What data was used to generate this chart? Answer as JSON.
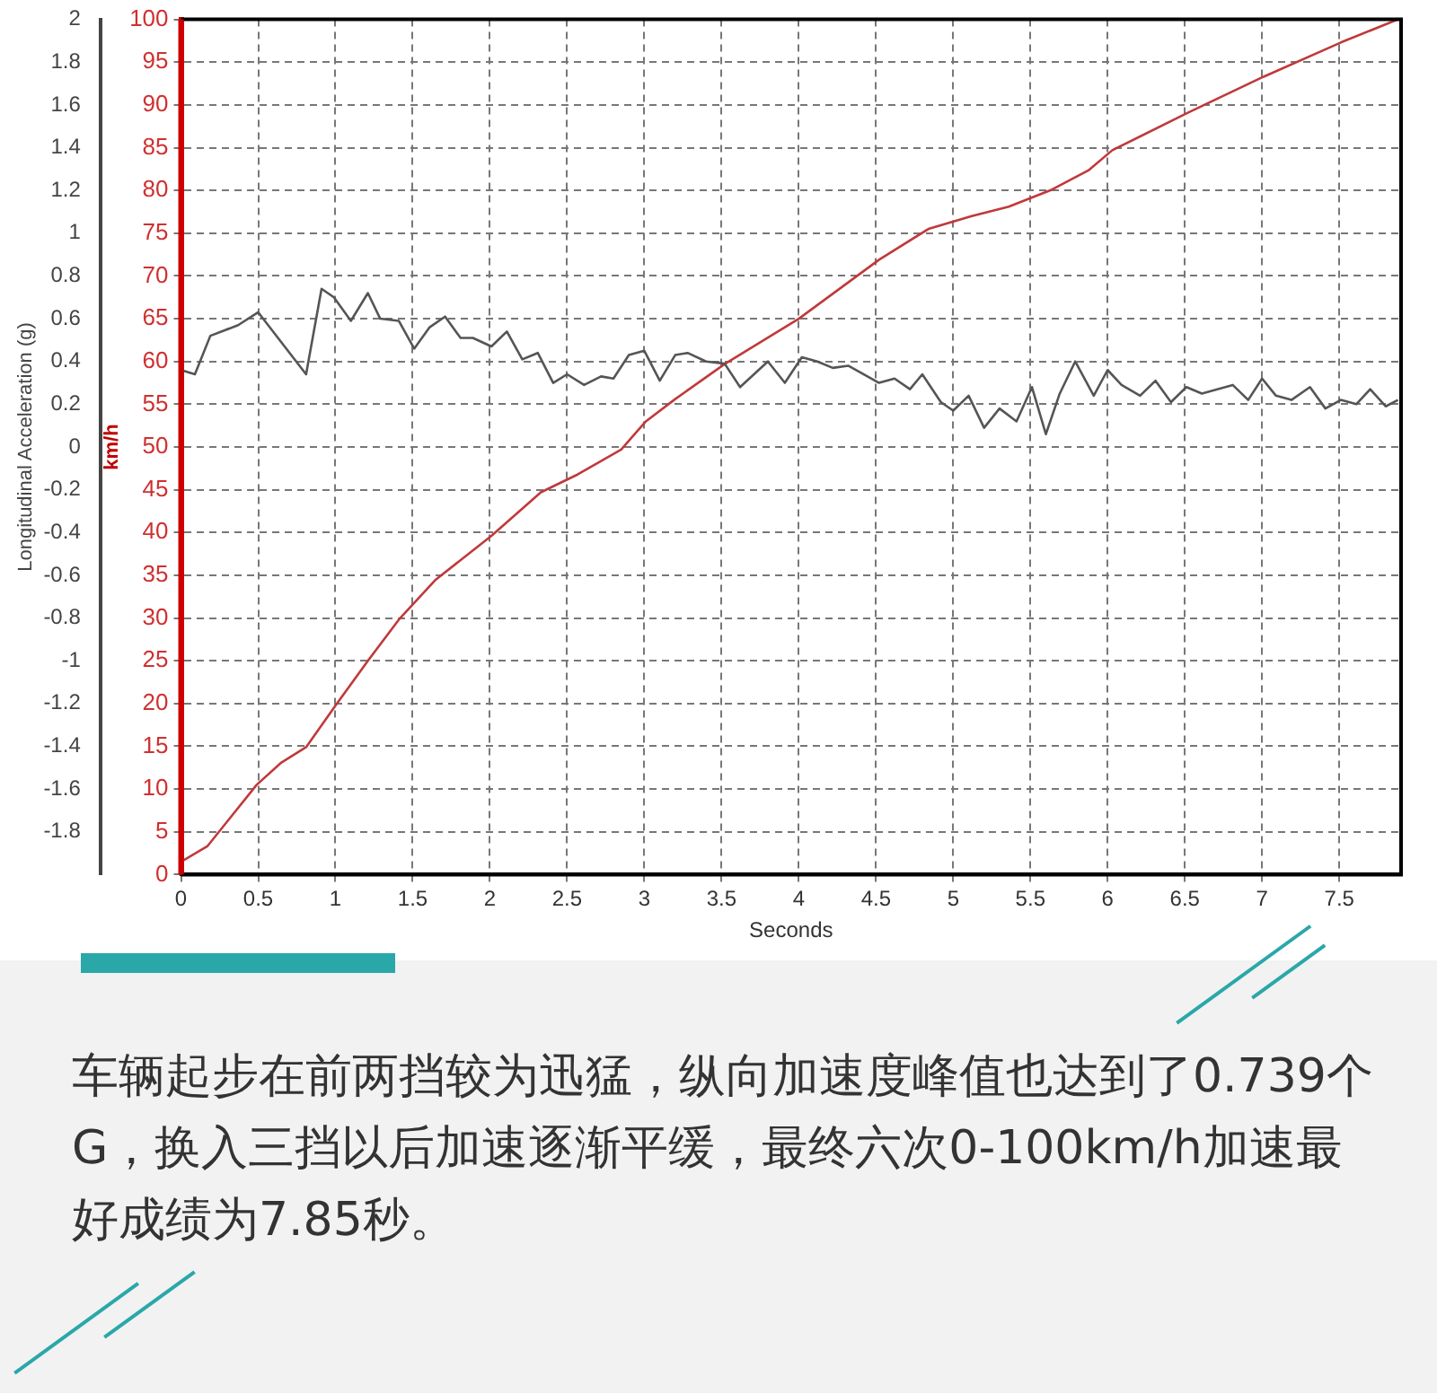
{
  "chart_data": {
    "type": "line",
    "xlabel": "Seconds",
    "ylabel": "Longitudinal Acceleration (g)",
    "y2label": "km/h",
    "xlim": [
      0,
      7.9
    ],
    "xticks": [
      0,
      0.5,
      1,
      1.5,
      2,
      2.5,
      3,
      3.5,
      4,
      4.5,
      5,
      5.5,
      6,
      6.5,
      7,
      7.5
    ],
    "ylim": [
      -2,
      2
    ],
    "yticks": [
      -1.8,
      -1.6,
      -1.4,
      -1.2,
      -1,
      -0.8,
      -0.6,
      -0.4,
      -0.2,
      0,
      0.2,
      0.4,
      0.6,
      0.8,
      1,
      1.2,
      1.4,
      1.6,
      1.8,
      2
    ],
    "y2lim": [
      0,
      100
    ],
    "y2ticks": [
      0,
      5,
      10,
      15,
      20,
      25,
      30,
      35,
      40,
      45,
      50,
      55,
      60,
      65,
      70,
      75,
      80,
      85,
      90,
      95,
      100
    ],
    "grid": true,
    "series": [
      {
        "color": "#555555",
        "x": [
          0,
          0.09,
          0.19,
          0.37,
          0.5,
          0.81,
          0.91,
          0.99,
          1.1,
          1.21,
          1.29,
          1.41,
          1.51,
          1.61,
          1.71,
          1.81,
          1.89,
          2.01,
          2.11,
          2.21,
          2.31,
          2.41,
          2.5,
          2.61,
          2.72,
          2.8,
          2.9,
          3.0,
          3.1,
          3.2,
          3.28,
          3.4,
          3.52,
          3.62,
          3.8,
          3.91,
          4.02,
          4.12,
          4.22,
          4.32,
          4.52,
          4.62,
          4.72,
          4.8,
          4.92,
          5.0,
          5.1,
          5.2,
          5.3,
          5.41,
          5.51,
          5.6,
          5.69,
          5.79,
          5.91,
          6.0,
          6.09,
          6.21,
          6.31,
          6.41,
          6.51,
          6.61,
          6.71,
          6.81,
          6.91,
          7.0,
          7.09,
          7.19,
          7.31,
          7.41,
          7.51,
          7.61,
          7.7,
          7.8,
          7.88
        ],
        "values": [
          0.36,
          0.34,
          0.52,
          0.57,
          0.63,
          0.34,
          0.74,
          0.7,
          0.59,
          0.72,
          0.6,
          0.59,
          0.46,
          0.56,
          0.61,
          0.51,
          0.51,
          0.47,
          0.54,
          0.41,
          0.44,
          0.3,
          0.34,
          0.29,
          0.33,
          0.32,
          0.43,
          0.45,
          0.31,
          0.43,
          0.44,
          0.4,
          0.39,
          0.28,
          0.4,
          0.3,
          0.42,
          0.4,
          0.37,
          0.38,
          0.3,
          0.32,
          0.27,
          0.34,
          0.21,
          0.17,
          0.24,
          0.09,
          0.18,
          0.12,
          0.28,
          0.06,
          0.25,
          0.4,
          0.24,
          0.36,
          0.29,
          0.24,
          0.31,
          0.21,
          0.28,
          0.25,
          0.27,
          0.29,
          0.22,
          0.32,
          0.24,
          0.22,
          0.28,
          0.18,
          0.22,
          0.2,
          0.27,
          0.19,
          0.22
        ]
      },
      {
        "color": "#c0393b",
        "axis": "y2",
        "x": [
          0,
          0.17,
          0.49,
          0.65,
          0.81,
          1.01,
          1.21,
          1.41,
          1.65,
          2.01,
          2.33,
          2.57,
          2.85,
          3.01,
          3.2,
          3.52,
          4.0,
          4.52,
          4.84,
          5.12,
          5.36,
          5.64,
          5.88,
          6.03,
          6.51,
          7.01,
          7.51,
          7.88
        ],
        "values": [
          1.5,
          3.3,
          10.5,
          13.1,
          14.9,
          20,
          25,
          29.8,
          34.5,
          39.6,
          44.7,
          46.8,
          49.7,
          53,
          55.6,
          59.7,
          65,
          71.9,
          75.5,
          77,
          78.1,
          80.1,
          82.4,
          84.7,
          89,
          93.3,
          97.3,
          100
        ]
      }
    ],
    "annotations": [
      "车辆起步在前两挡较为迅猛，纵向加速度峰值也达到了0.739个G，换入三挡以后加速逐渐平缓，最终六次0-100km/h加速最好成绩为7.85秒。"
    ]
  }
}
